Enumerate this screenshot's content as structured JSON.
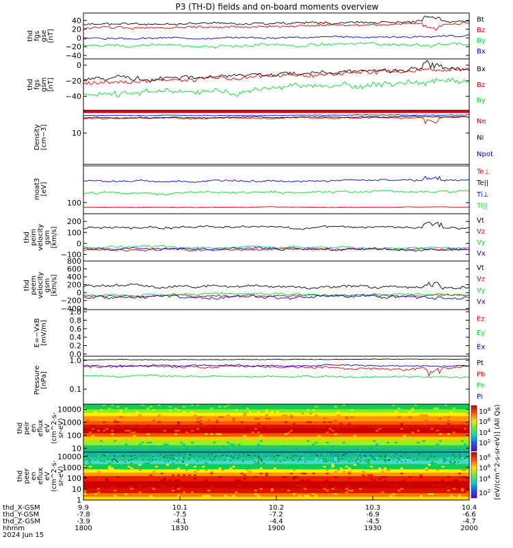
{
  "title": "P3 (TH-D) fields and on-board moments overview",
  "colors": {
    "black": "#000000",
    "red": "#e00000",
    "green": "#00dd33",
    "blue": "#0000dd"
  },
  "chart_data": {
    "type": "line",
    "x_unit": "hhmm",
    "x_ticks": [
      {
        "time": "1800",
        "x_gsm": "9.9",
        "y_gsm": "-7.8",
        "z_gsm": "-3.9"
      },
      {
        "time": "1830",
        "x_gsm": "10.1",
        "y_gsm": "-7.5",
        "z_gsm": "-4.1"
      },
      {
        "time": "1900",
        "x_gsm": "10.2",
        "y_gsm": "-7.2",
        "z_gsm": "-4.4"
      },
      {
        "time": "1930",
        "x_gsm": "10.3",
        "y_gsm": "-6.9",
        "z_gsm": "-4.5"
      },
      {
        "time": "2000",
        "x_gsm": "10.4",
        "y_gsm": "-6.6",
        "z_gsm": "-4.7"
      }
    ],
    "x_row_labels": [
      "thd_X-GSM",
      "thd_Y-GSM",
      "thd_Z-GSM",
      "hhmm"
    ],
    "date_label": "2024 Jun 15",
    "panels": [
      {
        "ylabel": [
          "thd",
          "fgs",
          "gse",
          "[nT]"
        ],
        "ylim": [
          -48,
          57
        ],
        "scale": "linear",
        "ticks": [
          {
            "v": 40,
            "label": "40"
          },
          {
            "v": 20,
            "label": "20"
          },
          {
            "v": 0,
            "label": "0"
          },
          {
            "v": -20,
            "label": "−20"
          },
          {
            "v": -40,
            "label": "−40"
          }
        ],
        "series": [
          {
            "name": "Bt",
            "color": "black",
            "start": 31,
            "end": 38,
            "noise": 4,
            "spikes": "up",
            "seed": 11
          },
          {
            "name": "Bz",
            "color": "red",
            "start": 22,
            "end": 33,
            "noise": 4,
            "spikes": "down",
            "seed": 12
          },
          {
            "name": "By",
            "color": "green",
            "start": -17,
            "end": -15,
            "noise": 5,
            "seed": 13
          },
          {
            "name": "Bx",
            "color": "blue",
            "start": -2,
            "end": 4,
            "noise": 3,
            "seed": 14
          }
        ]
      },
      {
        "ylabel": [
          "thd",
          "fgs",
          "gsm",
          "[nT]"
        ],
        "ylim": [
          -58,
          8
        ],
        "scale": "linear",
        "ticks": [
          {
            "v": 0,
            "label": "0"
          },
          {
            "v": -20,
            "label": "−20"
          },
          {
            "v": -40,
            "label": "−40"
          }
        ],
        "series": [
          {
            "name": "Bx",
            "color": "black",
            "start": -18,
            "end": -4,
            "noise": 4,
            "spikes": "up",
            "seed": 21
          },
          {
            "name": "Bz",
            "color": "red",
            "start": -22,
            "end": -6,
            "noise": 4,
            "seed": 22
          },
          {
            "name": "By",
            "color": "green",
            "start": -40,
            "end": -18,
            "noise": 6,
            "seed": 23
          }
        ]
      },
      {
        "ylabel": [
          "Density",
          "[cm−3]"
        ],
        "ylim": [
          2,
          32
        ],
        "scale": "log",
        "ticks": [
          {
            "v": 10,
            "label": "10"
          }
        ],
        "series": [
          {
            "name": "Ne",
            "color": "red",
            "start": 21,
            "end": 22,
            "noise": 1.3,
            "dip": 4,
            "seed": 31
          },
          {
            "name": "Ni",
            "color": "black",
            "start": 22,
            "end": 23,
            "noise": 0.8,
            "seed": 32
          },
          {
            "name": "Npot",
            "color": "blue",
            "start": 24.5,
            "end": 25,
            "noise": 0.6,
            "seed": 33
          }
        ],
        "hline": {
          "color": "red",
          "value": 30
        }
      },
      {
        "ylabel": [
          "moat3",
          "[eV]"
        ],
        "ylim": [
          50,
          1100
        ],
        "scale": "log",
        "ticks": [
          {
            "v": 100,
            "label": "100"
          }
        ],
        "series": [
          {
            "name": "Te⊥",
            "color": "red",
            "start": 75,
            "end": 75,
            "noise": 2,
            "seed": 41
          },
          {
            "name": "Te||",
            "color": "black",
            "start": 1000,
            "end": 1000,
            "noise": 0,
            "seed": 42
          },
          {
            "name": "Ti⊥",
            "color": "blue",
            "start": 380,
            "end": 420,
            "noise": 35,
            "spikes": "up",
            "seed": 43
          },
          {
            "name": "Ti||",
            "color": "green",
            "start": 180,
            "end": 210,
            "noise": 20,
            "seed": 44
          }
        ]
      },
      {
        "ylabel": [
          "thd",
          "peim",
          "velocity",
          "gsm",
          "[km/s]"
        ],
        "ylim": [
          -160,
          270
        ],
        "scale": "linear",
        "ticks": [
          {
            "v": 200,
            "label": "200"
          },
          {
            "v": 100,
            "label": "100"
          },
          {
            "v": 0,
            "label": "0"
          },
          {
            "v": -100,
            "label": "−100"
          }
        ],
        "series": [
          {
            "name": "Vt",
            "color": "black",
            "start": 140,
            "end": 150,
            "noise": 15,
            "spikes": "up",
            "seed": 51
          },
          {
            "name": "Vz",
            "color": "red",
            "start": -60,
            "end": -50,
            "noise": 15,
            "seed": 52
          },
          {
            "name": "Vy",
            "color": "green",
            "start": -30,
            "end": -40,
            "noise": 15,
            "seed": 53
          },
          {
            "name": "Vx",
            "color": "blue",
            "start": -50,
            "end": -60,
            "noise": 15,
            "seed": 54
          }
        ]
      },
      {
        "ylabel": [
          "thd",
          "peem",
          "velocity",
          "gsm",
          "[km/s]"
        ],
        "ylim": [
          -430,
          800
        ],
        "scale": "linear",
        "ticks": [
          {
            "v": 800,
            "label": "800"
          },
          {
            "v": 600,
            "label": "600"
          },
          {
            "v": 400,
            "label": "400"
          },
          {
            "v": 200,
            "label": "200"
          },
          {
            "v": 0,
            "label": "0"
          },
          {
            "v": -200,
            "label": "−200"
          },
          {
            "v": -400,
            "label": "−400"
          }
        ],
        "series": [
          {
            "name": "Vt",
            "color": "black",
            "start": 150,
            "end": 150,
            "noise": 50,
            "spikes": "up",
            "seed": 61
          },
          {
            "name": "Vz",
            "color": "red",
            "start": -80,
            "end": -80,
            "noise": 40,
            "seed": 62
          },
          {
            "name": "Vy",
            "color": "green",
            "start": -50,
            "end": -50,
            "noise": 40,
            "seed": 63
          },
          {
            "name": "Vx",
            "color": "blue",
            "start": -100,
            "end": -100,
            "noise": 60,
            "seed": 64
          }
        ]
      },
      {
        "ylabel": [
          "E=−VxB",
          "[mV/m]"
        ],
        "ylim": [
          -0.05,
          1.05
        ],
        "scale": "linear",
        "ticks": [
          {
            "v": 1.0,
            "label": "1.0"
          },
          {
            "v": 0.8,
            "label": "0.8"
          },
          {
            "v": 0.6,
            "label": "0.6"
          },
          {
            "v": 0.4,
            "label": "0.4"
          },
          {
            "v": 0.2,
            "label": "0.2"
          },
          {
            "v": 0.0,
            "label": "0.0"
          }
        ],
        "series": [
          {
            "name": "Ez",
            "color": "red",
            "empty": true
          },
          {
            "name": "Ey",
            "color": "green",
            "empty": true
          },
          {
            "name": "Ex",
            "color": "blue",
            "empty": true
          }
        ]
      },
      {
        "ylabel": [
          "Pressure",
          "[nPa]"
        ],
        "ylim": [
          0.03,
          1.4
        ],
        "scale": "log",
        "ticks": [
          {
            "v": 1.0,
            "label": "1.0"
          },
          {
            "v": 0.1,
            "label": "0.1"
          }
        ],
        "series": [
          {
            "name": "Pt",
            "color": "black",
            "start": 1.05,
            "end": 1.1,
            "noise": 0.04,
            "seed": 81
          },
          {
            "name": "Pb",
            "color": "red",
            "start": 0.62,
            "end": 0.55,
            "noise": 0.08,
            "spikes": "down",
            "seed": 82
          },
          {
            "name": "Pe",
            "color": "green",
            "start": 0.3,
            "end": 0.25,
            "noise": 0.03,
            "seed": 83
          },
          {
            "name": "Pi",
            "color": "blue",
            "start": 0.65,
            "end": 0.65,
            "noise": 0.06,
            "seed": 84
          }
        ]
      },
      {
        "type": "heatmap",
        "ylabel": [
          "thd",
          "peir",
          "en",
          "eflux",
          "eV",
          "(cm^2-s-",
          "sr-eV)"
        ],
        "ylim": [
          5,
          25000
        ],
        "scale": "log",
        "ticks": [
          {
            "v": 10000,
            "label": "10000"
          },
          {
            "v": 1000,
            "label": "1000"
          },
          {
            "v": 100,
            "label": "100"
          },
          {
            "v": 10,
            "label": "10"
          }
        ],
        "seed": 91
      },
      {
        "type": "heatmap",
        "ylabel": [
          "thd",
          "peer",
          "en",
          "eflux",
          "eV",
          "(cm^2-s-",
          "sr-eV)"
        ],
        "ylim": [
          1,
          25000
        ],
        "scale": "log",
        "ticks": [
          {
            "v": 10000,
            "label": "10000"
          },
          {
            "v": 1000,
            "label": "1000"
          },
          {
            "v": 100,
            "label": "100"
          },
          {
            "v": 10,
            "label": "10"
          },
          {
            "v": 1,
            "label": "1"
          }
        ],
        "seed": 92
      }
    ],
    "colorbar": {
      "label": "[eV/(cm^2-s-sr-eV)] (All Qs)",
      "ticks": [
        {
          "base": "10",
          "exp": "8",
          "frac": 0.06
        },
        {
          "base": "10",
          "exp": "6",
          "frac": 0.17
        },
        {
          "base": "10",
          "exp": "4",
          "frac": 0.29
        },
        {
          "base": "10",
          "exp": "2",
          "frac": 0.4
        },
        {
          "base": "10",
          "exp": "8",
          "frac": 0.56
        },
        {
          "base": "10",
          "exp": "6",
          "frac": 0.67
        },
        {
          "base": "10",
          "exp": "4",
          "frac": 0.79
        },
        {
          "base": "10",
          "exp": "2",
          "frac": 0.94
        }
      ]
    }
  }
}
